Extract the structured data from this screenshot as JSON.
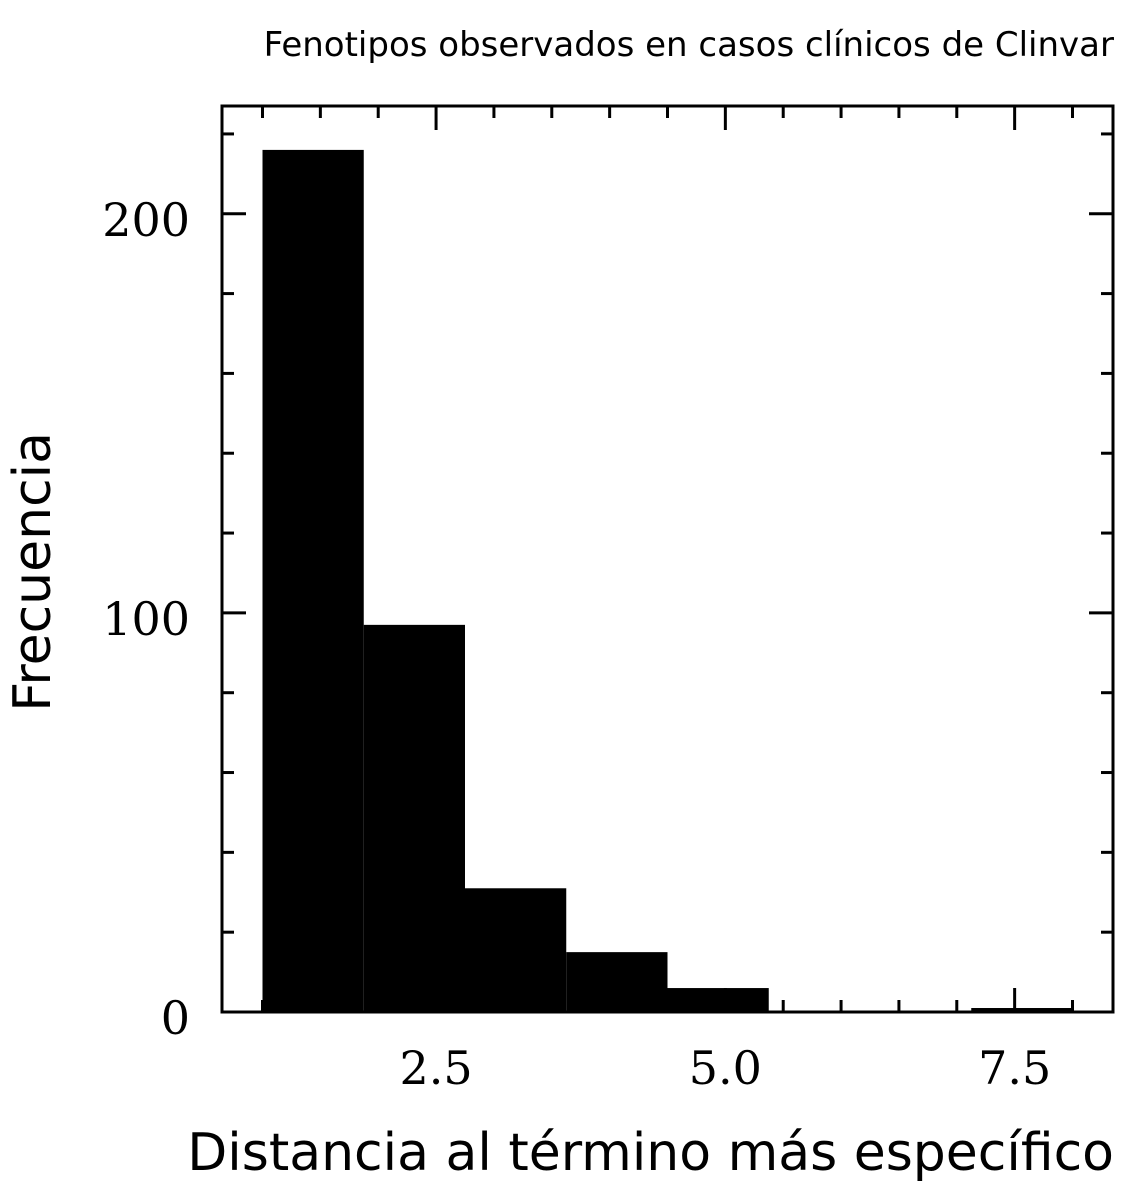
{
  "chart_data": {
    "type": "bar",
    "title": "Fenotipos observados en casos clínicos de Clinvar",
    "xlabel": "Distancia al término más específico",
    "ylabel": "Frecuencia",
    "bins": [
      {
        "x0": 1.0,
        "x1": 1.875,
        "value": 216
      },
      {
        "x0": 1.875,
        "x1": 2.75,
        "value": 97
      },
      {
        "x0": 2.75,
        "x1": 3.625,
        "value": 31
      },
      {
        "x0": 3.625,
        "x1": 4.5,
        "value": 15
      },
      {
        "x0": 4.5,
        "x1": 5.375,
        "value": 6
      },
      {
        "x0": 5.375,
        "x1": 6.25,
        "value": 0
      },
      {
        "x0": 6.25,
        "x1": 7.125,
        "value": 0
      },
      {
        "x0": 7.125,
        "x1": 8.0,
        "value": 1
      }
    ],
    "xlim": [
      0.65,
      8.35
    ],
    "ylim": [
      0,
      227
    ],
    "xticks_major": [
      2.5,
      5.0,
      7.5
    ],
    "xtick_labels": [
      "2.5",
      "5.0",
      "7.5"
    ],
    "xticks_minor": [
      1.0,
      1.5,
      2.0,
      3.0,
      3.5,
      4.0,
      4.5,
      5.5,
      6.0,
      6.5,
      7.0,
      8.0
    ],
    "yticks_major": [
      0,
      100,
      200
    ],
    "ytick_labels": [
      "0",
      "100",
      "200"
    ],
    "yticks_minor": [
      20,
      40,
      60,
      80,
      120,
      140,
      160,
      180,
      220
    ],
    "bar_color": "#000000",
    "grid": false,
    "legend": "none"
  }
}
